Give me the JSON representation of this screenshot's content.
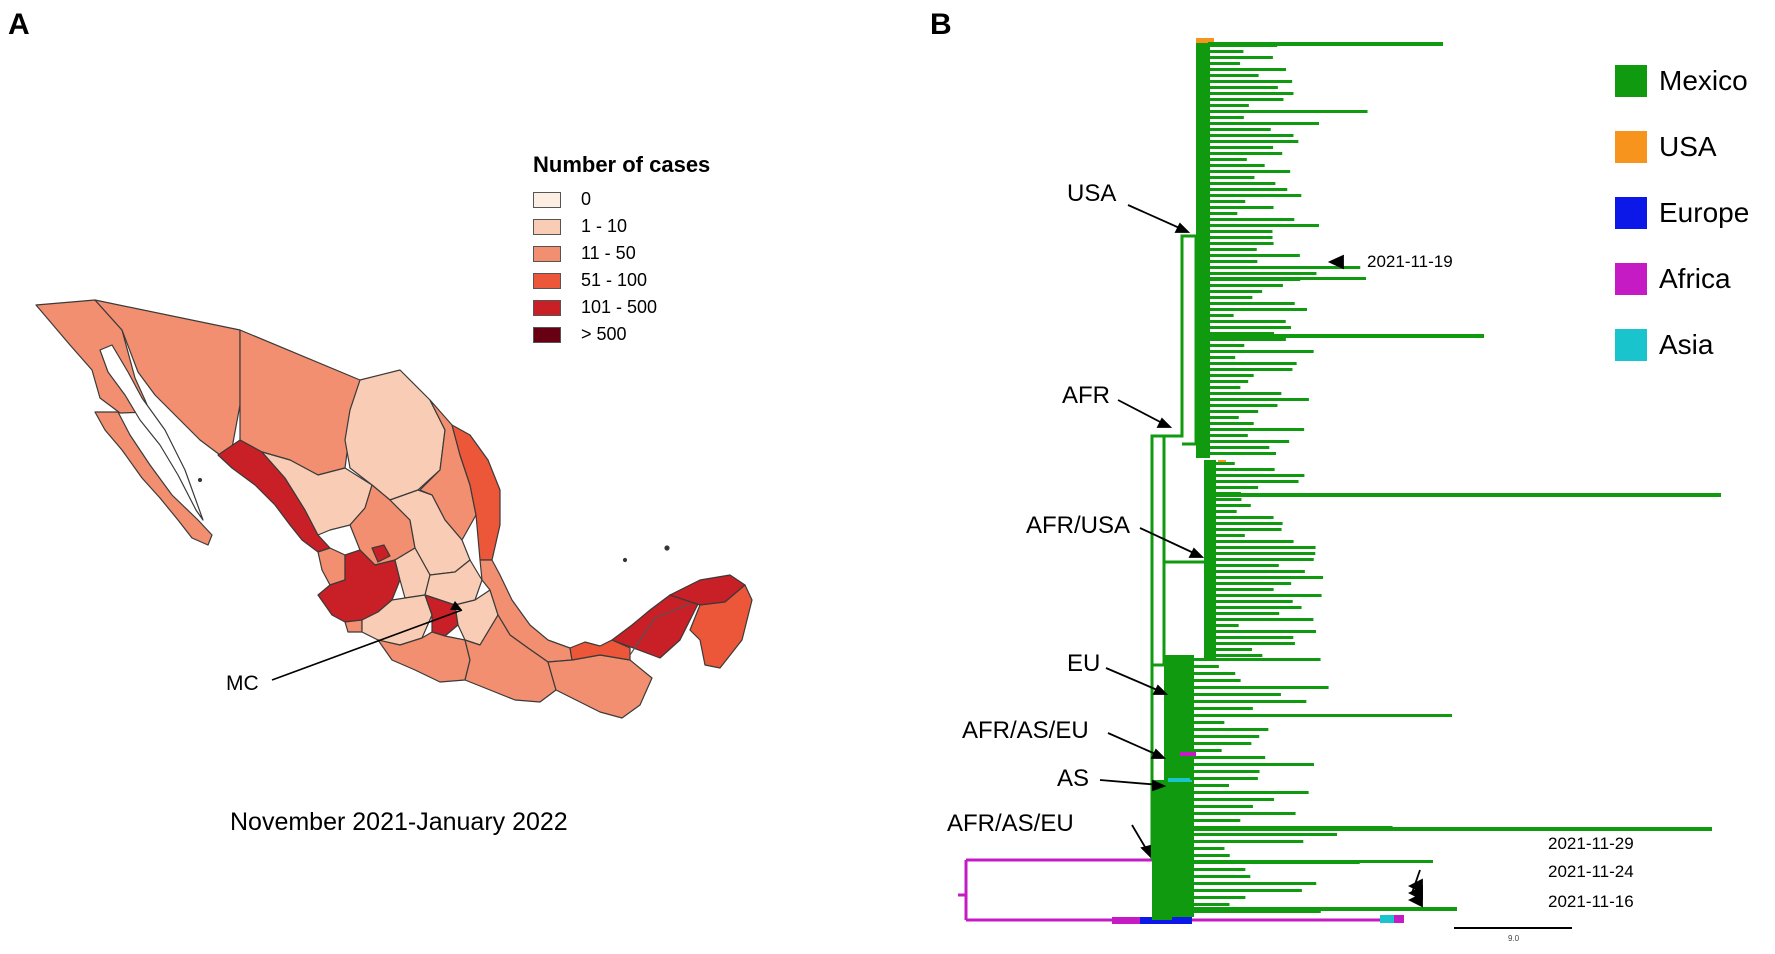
{
  "panels": {
    "a_letter": "A",
    "b_letter": "B"
  },
  "map": {
    "legend_title": "Number of cases",
    "legend": [
      {
        "label": "0",
        "color": "#fdeee4"
      },
      {
        "label": "1 - 10",
        "color": "#f9cdb5"
      },
      {
        "label": "11 - 50",
        "color": "#f28f70"
      },
      {
        "label": "51 - 100",
        "color": "#ec5639"
      },
      {
        "label": "101 - 500",
        "color": "#c91f26"
      },
      {
        "label": "> 500",
        "color": "#670012"
      }
    ],
    "mc_label": "MC",
    "caption": "November 2021-January 2022"
  },
  "tree": {
    "regions": [
      {
        "label": "Mexico",
        "color": "#0f9a0f"
      },
      {
        "label": "USA",
        "color": "#f7941d"
      },
      {
        "label": "Europe",
        "color": "#0c18e8"
      },
      {
        "label": "Africa",
        "color": "#c41bc4"
      },
      {
        "label": "Asia",
        "color": "#19c4cc"
      }
    ],
    "clade_labels": {
      "usa": "USA",
      "afr": "AFR",
      "afr_usa": "AFR/USA",
      "eu": "EU",
      "afr_as_eu_1": "AFR/AS/EU",
      "as": "AS",
      "afr_as_eu_2": "AFR/AS/EU"
    },
    "dates": {
      "d1": "2021-11-19",
      "d2": "2021-11-29",
      "d3": "2021-11-24",
      "d4": "2021-11-16"
    },
    "scale_label": "9.0"
  }
}
